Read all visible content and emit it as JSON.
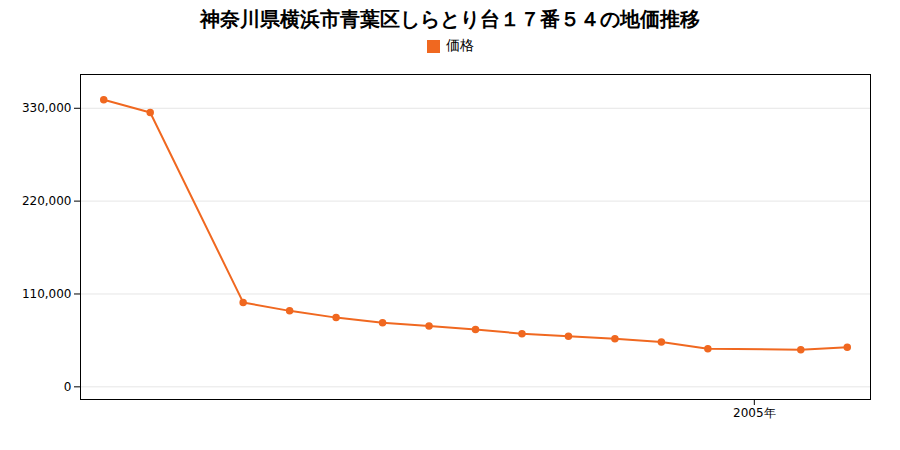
{
  "chart_data": {
    "type": "line",
    "title": "神奈川県横浜市青葉区しらとり台１７番５４の地価推移",
    "x": [
      1991,
      1992,
      1994,
      1995,
      1996,
      1997,
      1998,
      1999,
      2000,
      2001,
      2002,
      2003,
      2004,
      2006,
      2007
    ],
    "series": [
      {
        "name": "価格",
        "color": "#f06820",
        "marker": "circle",
        "values": [
          340000,
          325000,
          100000,
          90000,
          82000,
          76000,
          72000,
          68000,
          63000,
          60000,
          57000,
          53000,
          45000,
          44000,
          47000
        ]
      }
    ],
    "xlim": [
      1990.5,
      2007.5
    ],
    "xticks": [
      {
        "value": 2005,
        "label": "2005年"
      }
    ],
    "ylim": [
      -15000,
      370000
    ],
    "yticks": [
      0,
      {
        "value": 110000,
        "label": "110,000"
      },
      {
        "value": 220000,
        "label": "220,000"
      },
      {
        "value": 330000,
        "label": "330,000"
      }
    ],
    "grid": true,
    "legend": "top"
  }
}
